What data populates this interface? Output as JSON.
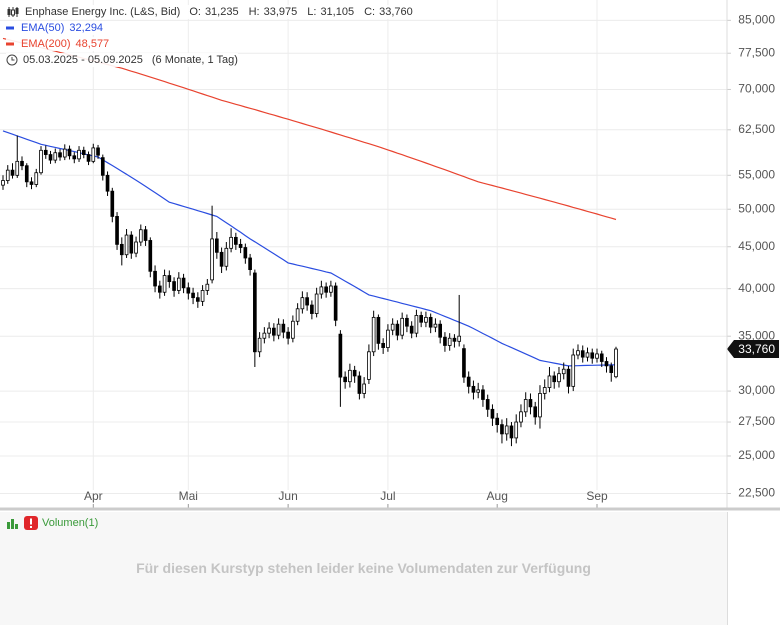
{
  "chart_data": {
    "type": "candlestick",
    "title": "Enphase Energy Inc. (L&S, Bid)",
    "ohlc_labels": [
      [
        "O:",
        "31,235"
      ],
      [
        "H:",
        "33,975"
      ],
      [
        "L:",
        "31,105"
      ],
      [
        "C:",
        "33,760"
      ]
    ],
    "date_range": "05.03.2025 - 05.09.2025",
    "period": "(6 Monate, 1 Tag)",
    "last_price_label": "33,760",
    "log_scale": true,
    "grid": true,
    "ylim": [
      21600,
      90000
    ],
    "yticks": [
      {
        "value": 85000,
        "label": "85,000"
      },
      {
        "value": 77500,
        "label": "77,500"
      },
      {
        "value": 70000,
        "label": "70,000"
      },
      {
        "value": 62500,
        "label": "62,500"
      },
      {
        "value": 55000,
        "label": "55,000"
      },
      {
        "value": 50000,
        "label": "50,000"
      },
      {
        "value": 45000,
        "label": "45,000"
      },
      {
        "value": 40000,
        "label": "40,000"
      },
      {
        "value": 35000,
        "label": "35,000"
      },
      {
        "value": 30000,
        "label": "30,000"
      },
      {
        "value": 27500,
        "label": "27,500"
      },
      {
        "value": 25000,
        "label": "25,000"
      },
      {
        "value": 22500,
        "label": "22,500"
      }
    ],
    "categories": [
      null,
      null,
      null,
      null,
      null,
      null,
      null,
      null,
      null,
      null,
      null,
      null,
      null,
      null,
      null,
      null,
      null,
      null,
      null,
      "Apr",
      null,
      null,
      null,
      null,
      null,
      null,
      null,
      null,
      null,
      null,
      null,
      null,
      null,
      null,
      null,
      null,
      null,
      null,
      null,
      "Mai",
      null,
      null,
      null,
      null,
      null,
      null,
      null,
      null,
      null,
      null,
      null,
      null,
      null,
      null,
      null,
      null,
      null,
      null,
      null,
      null,
      "Jun",
      null,
      null,
      null,
      null,
      null,
      null,
      null,
      null,
      null,
      null,
      null,
      null,
      null,
      null,
      null,
      null,
      null,
      null,
      null,
      null,
      "Jul",
      null,
      null,
      null,
      null,
      null,
      null,
      null,
      null,
      null,
      null,
      null,
      null,
      null,
      null,
      null,
      null,
      null,
      null,
      null,
      null,
      null,
      null,
      "Aug",
      null,
      null,
      null,
      null,
      null,
      null,
      null,
      null,
      null,
      null,
      null,
      null,
      null,
      null,
      null,
      null,
      null,
      null,
      null,
      null,
      "Sep",
      null,
      null,
      null,
      null
    ],
    "candles": {
      "up_color": "#ffffff",
      "down_color": "#000000",
      "edge_color": "#000000",
      "open": [
        53500,
        54200,
        55800,
        55000,
        57200,
        56500,
        54000,
        53600,
        55400,
        59000,
        58300,
        57400,
        58600,
        57900,
        59200,
        58100,
        57600,
        59000,
        58300,
        57200,
        59400,
        57800,
        55000,
        52600,
        49000,
        45300,
        44000,
        46500,
        44200,
        45600,
        47200,
        45800,
        42000,
        40300,
        39600,
        41500,
        40800,
        39800,
        41200,
        40100,
        39500,
        39000,
        38600,
        39800,
        41000,
        46000,
        44300,
        42600,
        44800,
        46200,
        45300,
        44900,
        43600,
        41800,
        33500,
        34800,
        35300,
        35800,
        35100,
        36200,
        35400,
        34800,
        36500,
        37800,
        39000,
        38200,
        37300,
        39400,
        40200,
        39600,
        40300,
        35200,
        31200,
        30800,
        31800,
        31300,
        29800,
        31000,
        33500,
        36900,
        34300,
        33900,
        35600,
        36200,
        35100,
        36800,
        36000,
        35300,
        37100,
        36400,
        36900,
        35900,
        36200,
        34900,
        34100,
        34800,
        34500,
        33800,
        31200,
        30400,
        29900,
        30100,
        29300,
        28500,
        27800,
        27300,
        26600,
        27200,
        26300,
        27500,
        28300,
        29300,
        28700,
        27900,
        29800,
        30300,
        31300,
        30800,
        31500,
        31900,
        30400,
        33200,
        33600,
        33000,
        33400,
        32900,
        33300,
        32600,
        32200,
        31235
      ],
      "high": [
        55000,
        56600,
        56900,
        61500,
        58000,
        56900,
        54700,
        56000,
        59700,
        59800,
        58900,
        59300,
        59200,
        60000,
        59800,
        58700,
        59700,
        59600,
        58800,
        60100,
        59900,
        58300,
        55600,
        53100,
        49600,
        46200,
        47300,
        47000,
        46300,
        47900,
        47700,
        46200,
        42700,
        40900,
        42200,
        42100,
        41300,
        41900,
        41700,
        40700,
        40100,
        39600,
        40400,
        41100,
        50500,
        46900,
        44900,
        45600,
        47400,
        46800,
        46000,
        45400,
        44100,
        42200,
        35400,
        35900,
        36400,
        36300,
        36800,
        36700,
        35900,
        37100,
        38400,
        39700,
        39600,
        38700,
        40100,
        40900,
        40700,
        40900,
        40700,
        35600,
        31700,
        32400,
        32200,
        31700,
        31200,
        34200,
        37600,
        37200,
        34800,
        36200,
        36800,
        36600,
        37400,
        37200,
        36500,
        37700,
        37500,
        37500,
        37300,
        36800,
        36600,
        35400,
        35300,
        35200,
        39300,
        34200,
        31700,
        30900,
        30700,
        30500,
        29700,
        28900,
        28200,
        27700,
        27800,
        27500,
        28100,
        28900,
        29900,
        29800,
        29100,
        30500,
        31000,
        32100,
        31700,
        32100,
        32500,
        32200,
        33800,
        34200,
        34100,
        33900,
        33800,
        33800,
        33600,
        33000,
        32500,
        33975
      ],
      "low": [
        52800,
        53700,
        54500,
        54600,
        55800,
        53200,
        52900,
        53200,
        55100,
        57600,
        56800,
        56900,
        57300,
        57400,
        57500,
        56900,
        57100,
        57700,
        56600,
        56900,
        57600,
        54200,
        51900,
        48200,
        44600,
        42700,
        43600,
        43500,
        43700,
        45100,
        45100,
        41300,
        39600,
        38900,
        39200,
        40100,
        39100,
        39400,
        39500,
        38800,
        38300,
        37900,
        38100,
        39300,
        40600,
        43500,
        41800,
        42100,
        44300,
        44600,
        44200,
        42900,
        41500,
        32100,
        33000,
        34300,
        34800,
        34500,
        34700,
        34800,
        34200,
        34400,
        36100,
        37300,
        37600,
        36700,
        36900,
        38900,
        39000,
        39100,
        36000,
        28700,
        30200,
        30300,
        30700,
        29300,
        29400,
        30600,
        33100,
        33700,
        33300,
        33500,
        35100,
        34600,
        34700,
        35400,
        34800,
        34900,
        35900,
        35900,
        35300,
        35400,
        34300,
        33500,
        33600,
        33900,
        34000,
        30700,
        29800,
        29300,
        29400,
        28700,
        27900,
        27200,
        26700,
        25900,
        26100,
        25700,
        25900,
        27100,
        27900,
        28100,
        27300,
        27000,
        29300,
        29900,
        30200,
        30300,
        31000,
        29800,
        30000,
        32800,
        32500,
        32600,
        32400,
        32500,
        32100,
        31600,
        30800,
        31105
      ],
      "close": [
        54200,
        55800,
        55000,
        57200,
        56500,
        54000,
        53600,
        55400,
        59000,
        58300,
        57400,
        58600,
        57900,
        59200,
        58100,
        57600,
        59000,
        58300,
        57200,
        59400,
        58200,
        55000,
        52600,
        49000,
        45300,
        44000,
        46500,
        44200,
        45600,
        47200,
        45800,
        42000,
        40300,
        39600,
        41500,
        40800,
        39800,
        41200,
        40100,
        39500,
        39000,
        38600,
        39800,
        40500,
        46000,
        44300,
        42600,
        44800,
        46200,
        45300,
        44900,
        43600,
        42200,
        33500,
        34800,
        35300,
        35800,
        35100,
        36200,
        35400,
        34800,
        36500,
        37800,
        39000,
        38200,
        37300,
        39400,
        40200,
        39600,
        40300,
        36600,
        31200,
        30800,
        31800,
        31300,
        29800,
        30600,
        33500,
        36900,
        34300,
        33900,
        35600,
        36200,
        35100,
        36800,
        36000,
        35300,
        37100,
        36400,
        36900,
        35900,
        36200,
        34900,
        34100,
        34800,
        34500,
        35000,
        31200,
        30400,
        29900,
        30100,
        29300,
        28500,
        27800,
        27300,
        26600,
        27200,
        26300,
        27500,
        28300,
        29300,
        28700,
        27900,
        29800,
        30300,
        31300,
        30800,
        31500,
        31900,
        30400,
        33200,
        33600,
        33000,
        33400,
        32900,
        33300,
        32600,
        32200,
        31600,
        33760
      ]
    },
    "series": [
      {
        "name": "EMA(50)",
        "color": "#2a4de0",
        "value_label": "32,294",
        "values": [
          62300,
          62010,
          61730,
          61440,
          61150,
          60860,
          60580,
          60290,
          60000,
          59830,
          59650,
          59480,
          59300,
          59130,
          58950,
          58780,
          58600,
          58430,
          58250,
          58080,
          57900,
          57440,
          56990,
          56530,
          56070,
          55610,
          55160,
          54700,
          54240,
          53780,
          53310,
          52850,
          52390,
          51930,
          51460,
          51000,
          50800,
          50600,
          50400,
          50200,
          50000,
          49800,
          49600,
          49400,
          49200,
          49000,
          48570,
          48140,
          47710,
          47290,
          46860,
          46430,
          46000,
          45630,
          45250,
          44880,
          44500,
          44130,
          43750,
          43380,
          43000,
          42870,
          42730,
          42600,
          42470,
          42330,
          42200,
          42070,
          41930,
          41800,
          41490,
          41170,
          40860,
          40550,
          40240,
          39930,
          39610,
          39300,
          39170,
          39040,
          38910,
          38780,
          38650,
          38520,
          38380,
          38250,
          38120,
          37990,
          37860,
          37730,
          37600,
          37400,
          37200,
          37000,
          36800,
          36600,
          36400,
          36200,
          36000,
          35760,
          35510,
          35270,
          35030,
          34790,
          34540,
          34300,
          34100,
          33900,
          33700,
          33500,
          33300,
          33100,
          32900,
          32700,
          32620,
          32530,
          32450,
          32370,
          32280,
          32200,
          32210,
          32220,
          32230,
          32240,
          32250,
          32260,
          32270,
          32280,
          32290,
          32294
        ]
      },
      {
        "name": "EMA(200)",
        "color": "#e8432f",
        "value_label": "48,577",
        "values": [
          80800,
          80540,
          80280,
          80020,
          79760,
          79500,
          79240,
          78980,
          78720,
          78460,
          78200,
          77940,
          77680,
          77420,
          77160,
          76900,
          76640,
          76380,
          76120,
          75860,
          75600,
          75340,
          75080,
          74820,
          74560,
          74300,
          74000,
          73690,
          73390,
          73080,
          72780,
          72470,
          72170,
          71860,
          71560,
          71250,
          70950,
          70640,
          70340,
          70030,
          69730,
          69420,
          69120,
          68810,
          68510,
          68200,
          67900,
          67650,
          67400,
          67150,
          66890,
          66640,
          66390,
          66140,
          65890,
          65640,
          65380,
          65130,
          64880,
          64630,
          64380,
          64120,
          63870,
          63620,
          63370,
          63120,
          62870,
          62620,
          62360,
          62110,
          61860,
          61610,
          61360,
          61110,
          60850,
          60600,
          60350,
          60100,
          59850,
          59600,
          59330,
          59070,
          58800,
          58530,
          58270,
          58000,
          57730,
          57470,
          57200,
          56930,
          56670,
          56400,
          56130,
          55870,
          55600,
          55330,
          55070,
          54800,
          54530,
          54270,
          54000,
          53810,
          53630,
          53440,
          53250,
          53070,
          52880,
          52690,
          52510,
          52320,
          52130,
          51940,
          51760,
          51570,
          51380,
          51200,
          51010,
          50820,
          50640,
          50450,
          50260,
          50070,
          49890,
          49700,
          49510,
          49330,
          49140,
          48950,
          48770,
          48577
        ]
      }
    ]
  },
  "volume_panel": {
    "title": "Volumen(1)",
    "message": "Für diesen Kurstyp stehen leider keine Volumendaten zur Verfügung"
  }
}
